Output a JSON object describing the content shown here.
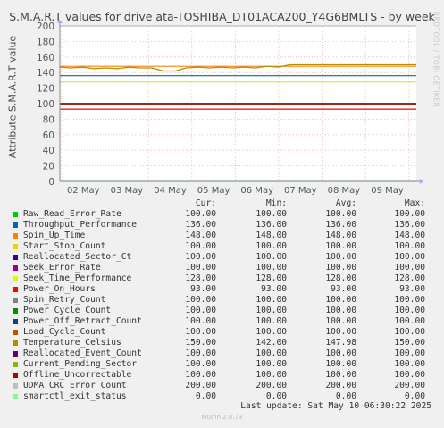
{
  "title": "S.M.A.R.T values for drive ata-TOSHIBA_DT01ACA200_Y4G6BMLTS - by week",
  "watermark": "RRDTOOL / TOBI OETIKER",
  "footer": {
    "last_update": "Last update: Sat May 10 06:30:22 2025",
    "munin": "Munin 2.0.73"
  },
  "chart_data": {
    "type": "line",
    "ylabel": "Attribute S.M.A.R.T value",
    "ylim": [
      0,
      200
    ],
    "yticks": [
      0,
      20,
      40,
      60,
      80,
      100,
      120,
      140,
      160,
      180,
      200
    ],
    "x_ticks": [
      "02 May",
      "03 May",
      "04 May",
      "05 May",
      "06 May",
      "07 May",
      "08 May",
      "09 May"
    ],
    "grid": true,
    "series": [
      {
        "name": "Raw_Read_Error_Rate",
        "color": "#00cc00",
        "values": [
          100,
          100
        ]
      },
      {
        "name": "Throughput_Performance",
        "color": "#0066b3",
        "values": [
          136,
          136
        ]
      },
      {
        "name": "Spin_Up_Time",
        "color": "#ff8000",
        "values": [
          148,
          148
        ]
      },
      {
        "name": "Start_Stop_Count",
        "color": "#ffcc00",
        "values": [
          100,
          100
        ]
      },
      {
        "name": "Reallocated_Sector_Ct",
        "color": "#330099",
        "values": [
          100,
          100
        ]
      },
      {
        "name": "Seek_Error_Rate",
        "color": "#990099",
        "values": [
          100,
          100
        ]
      },
      {
        "name": "Seek_Time_Performance",
        "color": "#ccff00",
        "values": [
          128,
          128
        ]
      },
      {
        "name": "Power_On_Hours",
        "color": "#ff0000",
        "values": [
          93,
          93
        ]
      },
      {
        "name": "Spin_Retry_Count",
        "color": "#808080",
        "values": [
          100,
          100
        ]
      },
      {
        "name": "Power_Cycle_Count",
        "color": "#008f00",
        "values": [
          100,
          100
        ]
      },
      {
        "name": "Power_Off_Retract_Count",
        "color": "#00487d",
        "values": [
          100,
          100
        ]
      },
      {
        "name": "Load_Cycle_Count",
        "color": "#b35a00",
        "values": [
          100,
          100
        ]
      },
      {
        "name": "Temperature_Celsius",
        "color": "#b38f00",
        "values": [
          147,
          146,
          147,
          145,
          146,
          145,
          147,
          146,
          146,
          142,
          142,
          146,
          147,
          146,
          147,
          146,
          147,
          146,
          148,
          147,
          150,
          150,
          150,
          150,
          150,
          150,
          150,
          150,
          150,
          150,
          150,
          150
        ]
      },
      {
        "name": "Reallocated_Event_Count",
        "color": "#6b006b",
        "values": [
          100,
          100
        ]
      },
      {
        "name": "Current_Pending_Sector",
        "color": "#8fb300",
        "values": [
          100,
          100
        ]
      },
      {
        "name": "Offline_Uncorrectable",
        "color": "#b30000",
        "values": [
          100,
          100
        ]
      },
      {
        "name": "UDMA_CRC_Error_Count",
        "color": "#bebebe",
        "values": [
          200,
          200
        ]
      },
      {
        "name": "smartctl_exit_status",
        "color": "#80ff80",
        "values": [
          0,
          0
        ]
      }
    ]
  },
  "legend": {
    "headers": {
      "cur": "Cur:",
      "min": "Min:",
      "avg": "Avg:",
      "max": "Max:"
    },
    "rows": [
      {
        "name": "Raw_Read_Error_Rate",
        "color": "#00cc00",
        "cur": "100.00",
        "min": "100.00",
        "avg": "100.00",
        "max": "100.00"
      },
      {
        "name": "Throughput_Performance",
        "color": "#0066b3",
        "cur": "136.00",
        "min": "136.00",
        "avg": "136.00",
        "max": "136.00"
      },
      {
        "name": "Spin_Up_Time",
        "color": "#ff8000",
        "cur": "148.00",
        "min": "148.00",
        "avg": "148.00",
        "max": "148.00"
      },
      {
        "name": "Start_Stop_Count",
        "color": "#ffcc00",
        "cur": "100.00",
        "min": "100.00",
        "avg": "100.00",
        "max": "100.00"
      },
      {
        "name": "Reallocated_Sector_Ct",
        "color": "#330099",
        "cur": "100.00",
        "min": "100.00",
        "avg": "100.00",
        "max": "100.00"
      },
      {
        "name": "Seek_Error_Rate",
        "color": "#990099",
        "cur": "100.00",
        "min": "100.00",
        "avg": "100.00",
        "max": "100.00"
      },
      {
        "name": "Seek_Time_Performance",
        "color": "#ccff00",
        "cur": "128.00",
        "min": "128.00",
        "avg": "128.00",
        "max": "128.00"
      },
      {
        "name": "Power_On_Hours",
        "color": "#ff0000",
        "cur": "93.00",
        "min": "93.00",
        "avg": "93.00",
        "max": "93.00"
      },
      {
        "name": "Spin_Retry_Count",
        "color": "#808080",
        "cur": "100.00",
        "min": "100.00",
        "avg": "100.00",
        "max": "100.00"
      },
      {
        "name": "Power_Cycle_Count",
        "color": "#008f00",
        "cur": "100.00",
        "min": "100.00",
        "avg": "100.00",
        "max": "100.00"
      },
      {
        "name": "Power_Off_Retract_Count",
        "color": "#00487d",
        "cur": "100.00",
        "min": "100.00",
        "avg": "100.00",
        "max": "100.00"
      },
      {
        "name": "Load_Cycle_Count",
        "color": "#b35a00",
        "cur": "100.00",
        "min": "100.00",
        "avg": "100.00",
        "max": "100.00"
      },
      {
        "name": "Temperature_Celsius",
        "color": "#b38f00",
        "cur": "150.00",
        "min": "142.00",
        "avg": "147.98",
        "max": "150.00"
      },
      {
        "name": "Reallocated_Event_Count",
        "color": "#6b006b",
        "cur": "100.00",
        "min": "100.00",
        "avg": "100.00",
        "max": "100.00"
      },
      {
        "name": "Current_Pending_Sector",
        "color": "#8fb300",
        "cur": "100.00",
        "min": "100.00",
        "avg": "100.00",
        "max": "100.00"
      },
      {
        "name": "Offline_Uncorrectable",
        "color": "#b30000",
        "cur": "100.00",
        "min": "100.00",
        "avg": "100.00",
        "max": "100.00"
      },
      {
        "name": "UDMA_CRC_Error_Count",
        "color": "#bebebe",
        "cur": "200.00",
        "min": "200.00",
        "avg": "200.00",
        "max": "200.00"
      },
      {
        "name": "smartctl_exit_status",
        "color": "#80ff80",
        "cur": "0.00",
        "min": "0.00",
        "avg": "0.00",
        "max": "0.00"
      }
    ]
  }
}
